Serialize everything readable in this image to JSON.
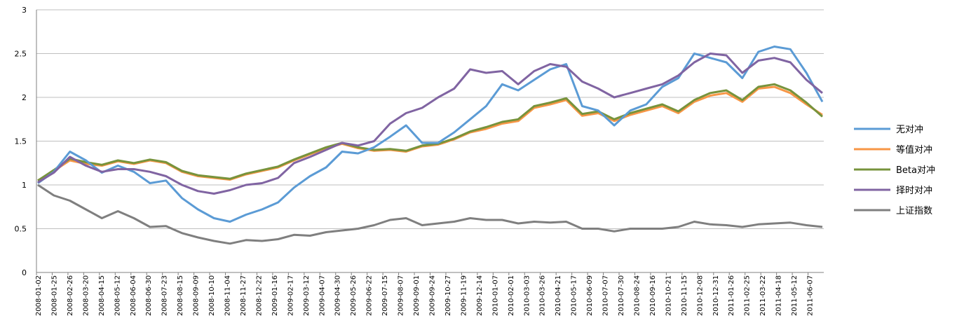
{
  "chart_data": {
    "type": "line",
    "title": "",
    "xlabel": "",
    "ylabel": "",
    "ylim": [
      0,
      3
    ],
    "yticks": [
      "0",
      "0.5",
      "1",
      "1.5",
      "2",
      "2.5",
      "3"
    ],
    "grid": "horizontal",
    "legend_position": "right",
    "x_labels": [
      "2008-01-02",
      "2008-01-25",
      "2008-02-26",
      "2008-03-20",
      "2008-04-15",
      "2008-05-12",
      "2008-06-04",
      "2008-06-30",
      "2008-07-23",
      "2008-08-15",
      "2008-09-09",
      "2008-10-10",
      "2008-11-04",
      "2008-11-27",
      "2008-12-22",
      "2009-01-16",
      "2009-02-17",
      "2009-03-12",
      "2009-04-07",
      "2009-04-30",
      "2009-05-26",
      "2009-06-22",
      "2009-07-15",
      "2009-08-07",
      "2009-09-01",
      "2009-09-24",
      "2009-10-27",
      "2009-11-19",
      "2009-12-14",
      "2010-01-07",
      "2010-02-01",
      "2010-03-03",
      "2010-03-26",
      "2010-04-21",
      "2010-05-17",
      "2010-06-09",
      "2010-07-07",
      "2010-07-30",
      "2010-08-24",
      "2010-09-16",
      "2010-10-21",
      "2010-11-15",
      "2010-12-08",
      "2010-12-31",
      "2011-01-26",
      "2011-02-25",
      "2011-03-22",
      "2011-04-18",
      "2011-05-12",
      "2011-06-07"
    ],
    "series": [
      {
        "name": "无对冲",
        "color": "#5B9BD5",
        "values": [
          1.02,
          1.15,
          1.38,
          1.28,
          1.14,
          1.22,
          1.15,
          1.02,
          1.05,
          0.85,
          0.72,
          0.62,
          0.58,
          0.66,
          0.72,
          0.8,
          0.97,
          1.1,
          1.2,
          1.38,
          1.36,
          1.43,
          1.55,
          1.68,
          1.48,
          1.48,
          1.6,
          1.75,
          1.9,
          2.15,
          2.08,
          2.2,
          2.32,
          2.38,
          1.9,
          1.85,
          1.68,
          1.85,
          1.92,
          2.12,
          2.22,
          2.5,
          2.45,
          2.4,
          2.22,
          2.52,
          2.58,
          2.55,
          2.28,
          1.95
        ]
      },
      {
        "name": "等值对冲",
        "color": "#F79646",
        "values": [
          1.05,
          1.16,
          1.28,
          1.24,
          1.22,
          1.27,
          1.24,
          1.28,
          1.25,
          1.15,
          1.1,
          1.08,
          1.06,
          1.12,
          1.16,
          1.2,
          1.28,
          1.35,
          1.42,
          1.47,
          1.42,
          1.39,
          1.4,
          1.38,
          1.44,
          1.46,
          1.52,
          1.6,
          1.64,
          1.7,
          1.73,
          1.88,
          1.92,
          1.97,
          1.79,
          1.82,
          1.73,
          1.8,
          1.85,
          1.9,
          1.82,
          1.95,
          2.02,
          2.05,
          1.95,
          2.1,
          2.12,
          2.05,
          1.92,
          1.8
        ]
      },
      {
        "name": "Beta对冲",
        "color": "#77933C",
        "values": [
          1.05,
          1.17,
          1.3,
          1.26,
          1.23,
          1.28,
          1.25,
          1.29,
          1.26,
          1.16,
          1.11,
          1.09,
          1.07,
          1.13,
          1.17,
          1.21,
          1.29,
          1.36,
          1.43,
          1.48,
          1.43,
          1.4,
          1.41,
          1.39,
          1.45,
          1.47,
          1.53,
          1.61,
          1.66,
          1.72,
          1.75,
          1.9,
          1.94,
          1.99,
          1.81,
          1.84,
          1.75,
          1.82,
          1.87,
          1.92,
          1.84,
          1.97,
          2.05,
          2.08,
          1.97,
          2.12,
          2.15,
          2.08,
          1.94,
          1.78
        ]
      },
      {
        "name": "择时对冲",
        "color": "#8064A2",
        "values": [
          1.03,
          1.14,
          1.32,
          1.22,
          1.15,
          1.18,
          1.18,
          1.15,
          1.1,
          1.0,
          0.93,
          0.9,
          0.94,
          1.0,
          1.02,
          1.08,
          1.25,
          1.32,
          1.4,
          1.48,
          1.45,
          1.5,
          1.7,
          1.82,
          1.88,
          2.0,
          2.1,
          2.32,
          2.28,
          2.3,
          2.15,
          2.3,
          2.38,
          2.35,
          2.18,
          2.1,
          2.0,
          2.05,
          2.1,
          2.15,
          2.25,
          2.4,
          2.5,
          2.48,
          2.28,
          2.42,
          2.45,
          2.4,
          2.2,
          2.05
        ]
      },
      {
        "name": "上证指数",
        "color": "#7F7F7F",
        "values": [
          1.0,
          0.88,
          0.82,
          0.72,
          0.62,
          0.7,
          0.62,
          0.52,
          0.53,
          0.45,
          0.4,
          0.36,
          0.33,
          0.37,
          0.36,
          0.38,
          0.43,
          0.42,
          0.46,
          0.48,
          0.5,
          0.54,
          0.6,
          0.62,
          0.54,
          0.56,
          0.58,
          0.62,
          0.6,
          0.6,
          0.56,
          0.58,
          0.57,
          0.58,
          0.5,
          0.5,
          0.47,
          0.5,
          0.5,
          0.5,
          0.52,
          0.58,
          0.55,
          0.54,
          0.52,
          0.55,
          0.56,
          0.57,
          0.54,
          0.52
        ]
      }
    ]
  }
}
